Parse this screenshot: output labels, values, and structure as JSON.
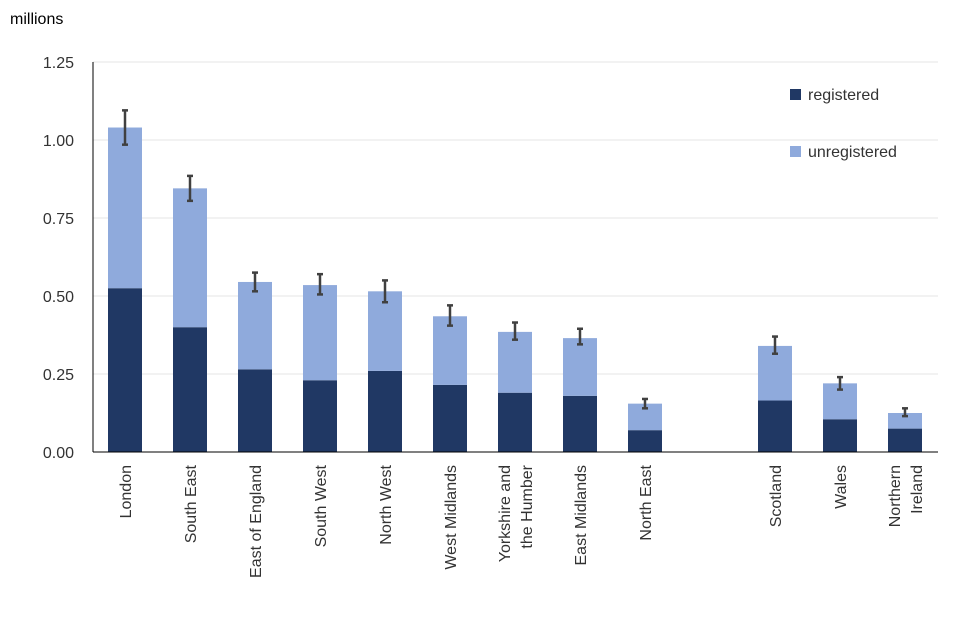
{
  "chart_data": {
    "type": "bar",
    "stacked": true,
    "title": "",
    "unit_label": "millions",
    "xlabel": "",
    "ylabel": "millions",
    "ylim": [
      0,
      1.25
    ],
    "yticks": [
      "0.00",
      "0.25",
      "0.50",
      "0.75",
      "1.00",
      "1.25"
    ],
    "grid": true,
    "legend_position": "top-right",
    "categories": [
      [
        "London"
      ],
      [
        "South East"
      ],
      [
        "East of England"
      ],
      [
        "South West"
      ],
      [
        "North West"
      ],
      [
        "West Midlands"
      ],
      [
        "Yorkshire and",
        "the Humber"
      ],
      [
        "East Midlands"
      ],
      [
        "North East"
      ],
      [
        "Scotland"
      ],
      [
        "Wales"
      ],
      [
        "Northern",
        "Ireland"
      ]
    ],
    "series": [
      {
        "name": "registered",
        "color": "#203864",
        "values": [
          0.525,
          0.4,
          0.265,
          0.23,
          0.26,
          0.215,
          0.19,
          0.18,
          0.07,
          0.165,
          0.105,
          0.075
        ]
      },
      {
        "name": "unregistered",
        "color": "#8faadc",
        "values": [
          0.515,
          0.445,
          0.28,
          0.305,
          0.255,
          0.22,
          0.195,
          0.185,
          0.085,
          0.175,
          0.115,
          0.05
        ]
      }
    ],
    "error_bars": [
      [
        0.985,
        1.095
      ],
      [
        0.805,
        0.885
      ],
      [
        0.515,
        0.575
      ],
      [
        0.505,
        0.57
      ],
      [
        0.48,
        0.55
      ],
      [
        0.405,
        0.47
      ],
      [
        0.36,
        0.415
      ],
      [
        0.345,
        0.395
      ],
      [
        0.14,
        0.17
      ],
      [
        0.315,
        0.37
      ],
      [
        0.2,
        0.24
      ],
      [
        0.115,
        0.14
      ]
    ],
    "error_bar_color": "#404040"
  }
}
